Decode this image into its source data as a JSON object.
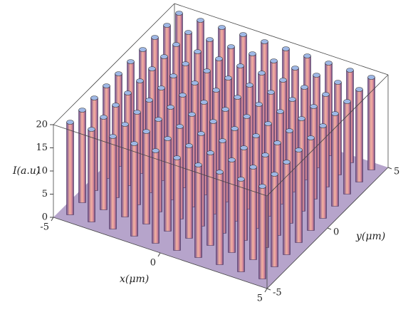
{
  "chart_data": {
    "type": "surface3d",
    "zlabel": "I(a.u)",
    "xlabel": "x(μm)",
    "ylabel": "y(μm)",
    "x": [
      -4.5,
      -3.5,
      -2.5,
      -1.5,
      -0.5,
      0.5,
      1.5,
      2.5,
      3.5,
      4.5
    ],
    "y": [
      -4.5,
      -3.5,
      -2.5,
      -1.5,
      -0.5,
      0.5,
      1.5,
      2.5,
      3.5,
      4.5
    ],
    "z": [
      [
        20,
        20,
        20,
        20,
        20,
        20,
        20,
        20,
        20,
        20
      ],
      [
        20,
        20,
        20,
        20,
        20,
        20,
        20,
        20,
        20,
        20
      ],
      [
        20,
        20,
        20,
        20,
        20,
        20,
        20,
        20,
        20,
        20
      ],
      [
        20,
        20,
        20,
        20,
        20,
        20,
        20,
        20,
        20,
        20
      ],
      [
        20,
        20,
        20,
        20,
        20,
        20,
        20,
        20,
        20,
        20
      ],
      [
        20,
        20,
        20,
        20,
        20,
        20,
        20,
        20,
        20,
        20
      ],
      [
        20,
        20,
        20,
        20,
        20,
        20,
        20,
        20,
        20,
        20
      ],
      [
        20,
        20,
        20,
        20,
        20,
        20,
        20,
        20,
        20,
        20
      ],
      [
        20,
        20,
        20,
        20,
        20,
        20,
        20,
        20,
        20,
        20
      ],
      [
        20,
        20,
        20,
        20,
        20,
        20,
        20,
        20,
        20,
        20
      ]
    ],
    "xlim": [
      -5,
      5
    ],
    "ylim": [
      -5,
      5
    ],
    "zlim": [
      0,
      20
    ],
    "xticks": [
      -5,
      0,
      5
    ],
    "yticks": [
      -5,
      0,
      5
    ],
    "zticks": [
      0,
      5,
      10,
      15,
      20
    ],
    "color": "#e79a9a",
    "top_color": "#9fb8e6",
    "floor_color": "#7a5aa0"
  }
}
